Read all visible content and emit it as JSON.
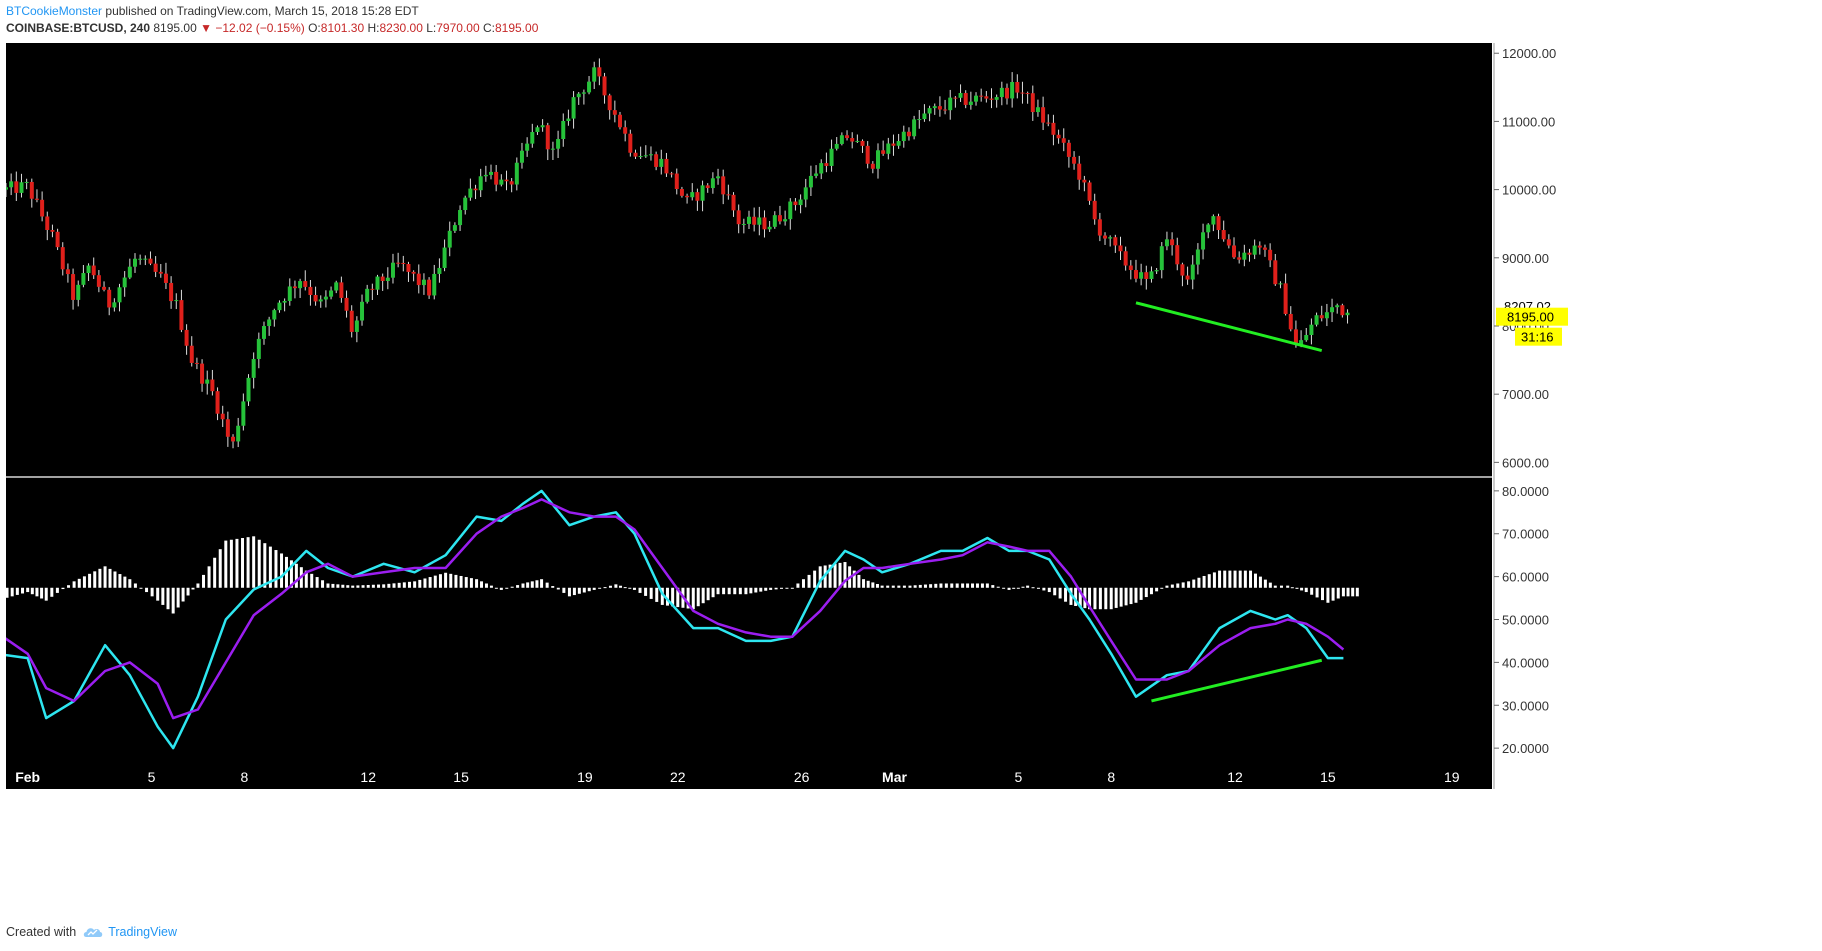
{
  "header": {
    "author": "BTCookieMonster",
    "published": "published on TradingView.com, March 15, 2018 15:28 EDT"
  },
  "ticker": {
    "symbol": "COINBASE:BTCUSD, 240",
    "last": "8195.00",
    "change": "−12.02 (−0.15%)",
    "open_label": "O:",
    "open": "8101.30",
    "high_label": "H:",
    "high": "8230.00",
    "low_label": "L:",
    "low": "7970.00",
    "close_label": "C:",
    "close": "8195.00"
  },
  "footer": {
    "created_with": "Created with",
    "brand": "TradingView"
  },
  "colors": {
    "background": "#000000",
    "up_candle": "#26c23a",
    "down_candle": "#e0201b",
    "fast_line": "#2ee6f0",
    "slow_line": "#9b1ef0",
    "trendline": "#22ee22",
    "price_badge": "#ffff00"
  },
  "chart_data": [
    {
      "type": "candlestick",
      "symbol": "COINBASE:BTCUSD",
      "interval": "240",
      "ylim": [
        5800,
        12150
      ],
      "yticks": [
        6000,
        7000,
        8000,
        9000,
        10000,
        11000,
        12000
      ],
      "ytick_labels": [
        "6000.00",
        "7000.00",
        "8000.00",
        "9000.00",
        "10000.00",
        "11000.00",
        "12000.00"
      ],
      "price_labels": {
        "prev_close": "8207.02",
        "last": "8195.00",
        "countdown": "31:16"
      },
      "price_values": {
        "prev_close": 8207.02,
        "last": 8195.0
      },
      "x_range_days": [
        0.3,
        48.3
      ],
      "x_tick_days": [
        1,
        5,
        8,
        12,
        15,
        19,
        22,
        26,
        29,
        33,
        36,
        40,
        43,
        47
      ],
      "x_tick_labels": [
        "Feb",
        "5",
        "8",
        "12",
        "15",
        "19",
        "22",
        "26",
        "Mar",
        "5",
        "8",
        "12",
        "15",
        "19"
      ],
      "x_bold_labels": [
        "Feb",
        "Mar"
      ],
      "anchor_days": [
        0.3,
        1.0,
        1.8,
        2.5,
        3.0,
        3.6,
        4.5,
        5.3,
        5.8,
        6.3,
        7.0,
        7.6,
        8.3,
        9.0,
        9.8,
        10.5,
        11.0,
        11.5,
        12.0,
        13.0,
        14.0,
        15.0,
        15.8,
        16.5,
        17.5,
        18.0,
        18.6,
        19.3,
        20.1,
        20.5,
        21.5,
        22.3,
        23.3,
        24.0,
        25.0,
        25.8,
        26.5,
        27.5,
        28.3,
        29.0,
        30.0,
        31.0,
        32.0,
        33.0,
        33.5,
        34.2,
        35.0,
        35.5,
        36.3,
        37.2,
        37.8,
        38.5,
        39.2,
        40.0,
        40.8,
        41.5,
        42.0,
        42.6,
        43.0,
        43.3,
        43.6
      ],
      "anchor_closes": [
        10000,
        10050,
        9300,
        8400,
        8900,
        8300,
        9000,
        8700,
        8300,
        7500,
        7000,
        6200,
        7600,
        8300,
        8700,
        8300,
        8600,
        7900,
        8500,
        8900,
        8500,
        9800,
        10300,
        10000,
        11000,
        10500,
        11300,
        11700,
        11000,
        10600,
        10400,
        9800,
        10200,
        9500,
        9500,
        9800,
        10300,
        10800,
        10400,
        10700,
        11100,
        11300,
        11350,
        11500,
        11200,
        10800,
        10200,
        9500,
        9000,
        8600,
        9300,
        8600,
        9700,
        9000,
        9200,
        8500,
        7650,
        8100,
        8195,
        8300,
        8195
      ],
      "trendline": {
        "start": [
          36.8,
          8340
        ],
        "end": [
          42.8,
          7640
        ]
      }
    },
    {
      "type": "line",
      "indicator": "oscillator with histogram",
      "ylim": [
        17,
        83
      ],
      "yticks": [
        20,
        30,
        40,
        50,
        60,
        70,
        80
      ],
      "ytick_labels": [
        "20.0000",
        "30.0000",
        "40.0000",
        "50.0000",
        "60.0000",
        "70.0000",
        "80.0000"
      ],
      "histogram_baseline": 57.4,
      "x": [
        0.0,
        1.0,
        1.6,
        2.5,
        3.5,
        4.3,
        5.2,
        5.7,
        6.5,
        7.4,
        8.3,
        9.2,
        10.0,
        10.7,
        11.5,
        12.5,
        13.5,
        14.5,
        15.5,
        16.3,
        17.0,
        17.6,
        18.5,
        19.3,
        20.0,
        20.6,
        21.5,
        22.5,
        23.3,
        24.2,
        25.0,
        25.7,
        26.6,
        27.4,
        28.0,
        28.6,
        29.5,
        30.5,
        31.2,
        32.0,
        32.7,
        33.3,
        34.0,
        34.7,
        35.3,
        36.0,
        36.8,
        37.8,
        38.5,
        39.5,
        40.5,
        41.3,
        41.7,
        42.3,
        43.0,
        43.5
      ],
      "series": [
        {
          "values": [
            42,
            41,
            27,
            31,
            44,
            37,
            25,
            20,
            32,
            50,
            57,
            60,
            66,
            62,
            60,
            63,
            61,
            65,
            74,
            73,
            77,
            80,
            72,
            74,
            75,
            70,
            56,
            48,
            48,
            45,
            45,
            46,
            59,
            66,
            64,
            61,
            63,
            66,
            66,
            69,
            66,
            66,
            64,
            56,
            50,
            42,
            32,
            37,
            38,
            48,
            52,
            50,
            51,
            48,
            41,
            41
          ]
        },
        {
          "values": [
            47,
            42,
            34,
            31,
            38,
            40,
            35,
            27,
            29,
            40,
            51,
            56,
            61,
            63,
            60,
            61,
            62,
            62,
            70,
            74,
            76,
            78,
            75,
            74,
            74,
            71,
            62,
            52,
            49,
            47,
            46,
            46,
            52,
            59,
            62,
            62,
            63,
            64,
            65,
            68,
            67,
            66,
            66,
            60,
            53,
            45,
            36,
            36,
            38,
            44,
            48,
            49,
            50,
            49,
            46,
            43
          ]
        }
      ],
      "histogram_levels": [
        -3,
        -1,
        -3,
        1.5,
        5,
        2,
        -3,
        -6,
        1,
        11,
        12,
        8,
        4,
        1,
        0.5,
        0.8,
        1.5,
        3.5,
        2,
        -0.5,
        1,
        2,
        -2,
        -0.5,
        0.8,
        -0.5,
        -4,
        -5,
        -1.5,
        -1.5,
        -0.5,
        0,
        5,
        6,
        2,
        0.5,
        0.5,
        1,
        1,
        1,
        -0.5,
        0.5,
        -1,
        -4,
        -5,
        -5,
        -3.5,
        0.5,
        1.5,
        4,
        4,
        0.5,
        0.5,
        -1,
        -3.5,
        -2
      ],
      "trendline": {
        "start": [
          37.3,
          31
        ],
        "end": [
          42.8,
          40.5
        ]
      }
    }
  ]
}
